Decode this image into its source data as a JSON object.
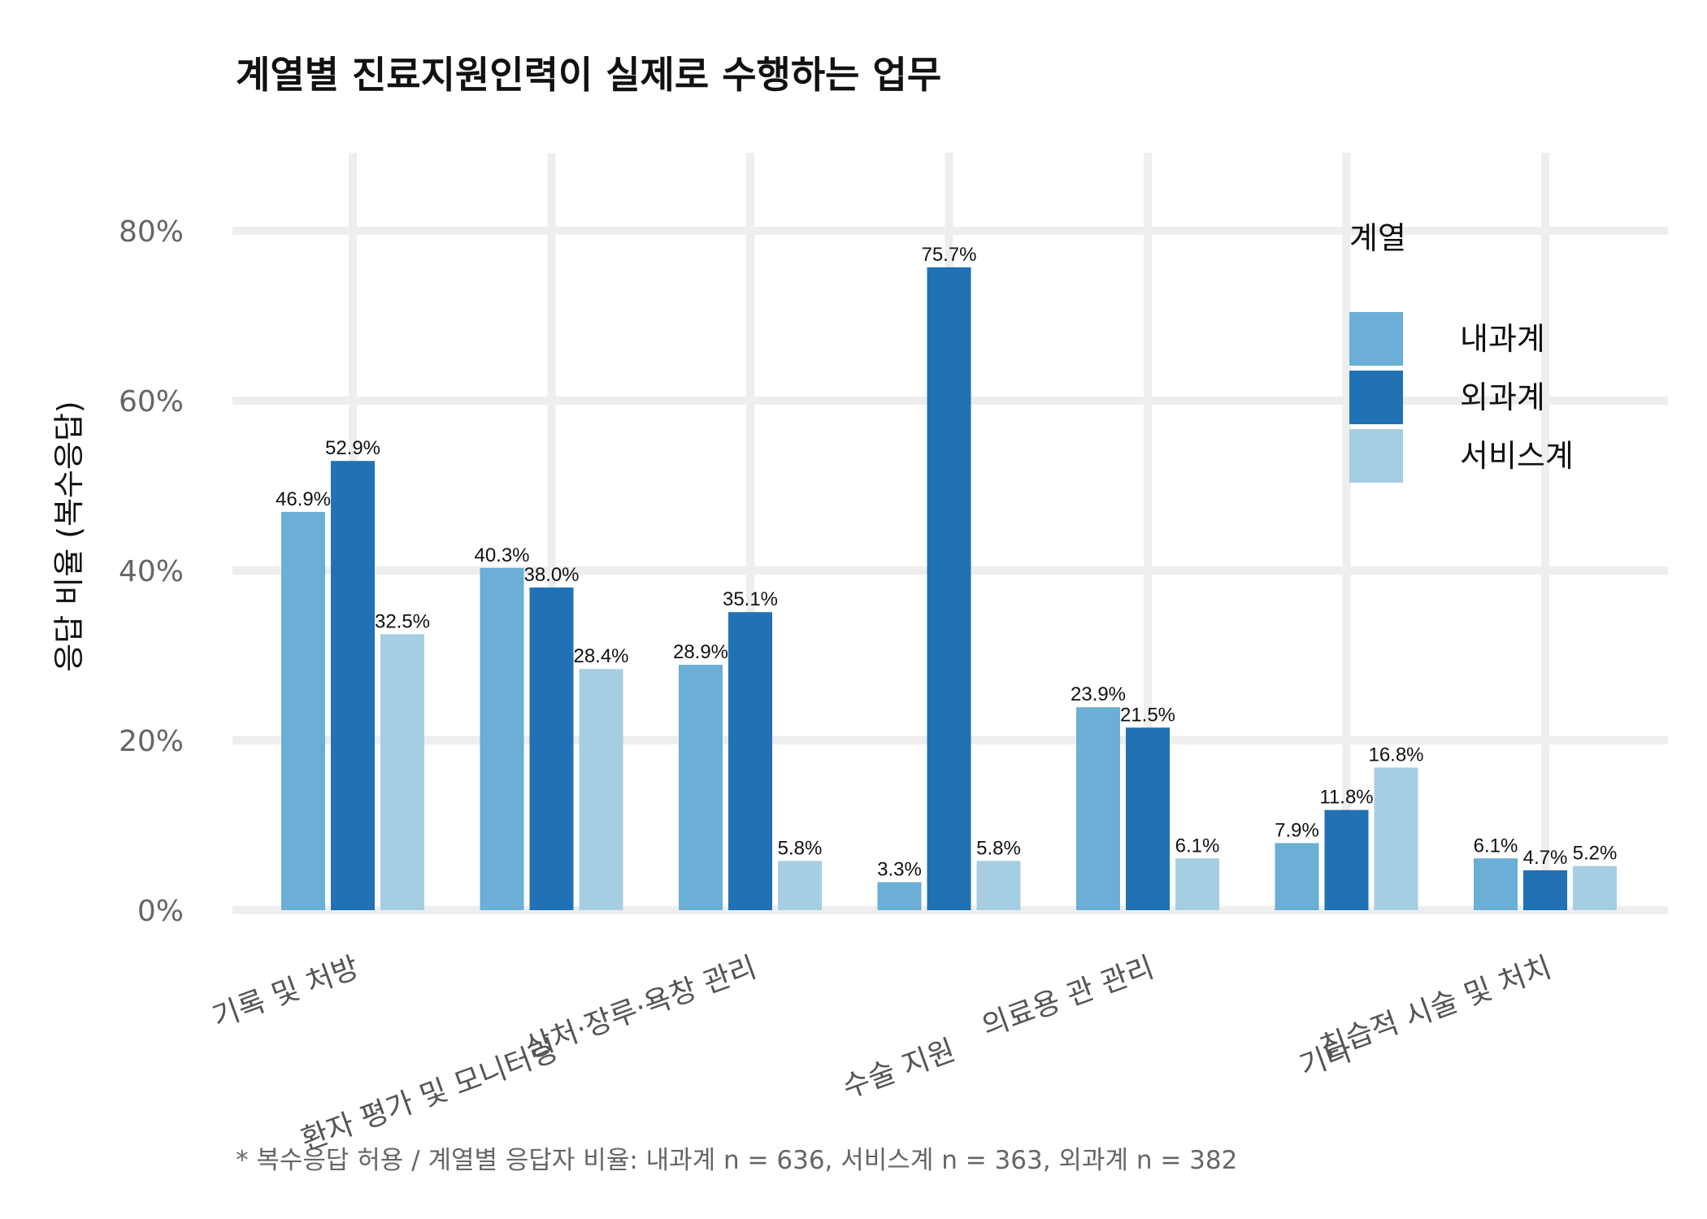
{
  "chart_data": {
    "type": "bar",
    "title": "계열별 진료지원인력이 실제로 수행하는 업무",
    "xlabel": "",
    "ylabel": "응답 비율 (복수응답)",
    "ylim": [
      0,
      88
    ],
    "yticks": [
      0,
      20,
      40,
      60,
      80
    ],
    "ytick_labels": [
      "0%",
      "20%",
      "40%",
      "60%",
      "80%"
    ],
    "grid": true,
    "legend_position": "right",
    "legend_title": "계열",
    "categories": [
      "기록 및 처방",
      "환자 평가 및 모니터링",
      "상처·장루·욕창 관리",
      "수술 지원",
      "의료용 관 관리",
      "기타",
      "침습적 시술 및 처치"
    ],
    "series": [
      {
        "name": "내과계",
        "color": "#6baed6",
        "values": [
          46.9,
          40.3,
          28.9,
          3.3,
          23.9,
          7.9,
          6.1
        ],
        "labels": [
          "46.9%",
          "40.3%",
          "28.9%",
          "3.3%",
          "23.9%",
          "7.9%",
          "6.1%"
        ]
      },
      {
        "name": "외과계",
        "color": "#2171b5",
        "values": [
          52.9,
          38.0,
          35.1,
          75.7,
          21.5,
          11.8,
          4.7
        ],
        "labels": [
          "52.9%",
          "38.0%",
          "35.1%",
          "75.7%",
          "21.5%",
          "11.8%",
          "4.7%"
        ]
      },
      {
        "name": "서비스계",
        "color": "#a6cee3",
        "values": [
          32.5,
          28.4,
          5.8,
          5.8,
          6.1,
          16.8,
          5.2
        ],
        "labels": [
          "32.5%",
          "28.4%",
          "5.8%",
          "5.8%",
          "6.1%",
          "16.8%",
          "5.2%"
        ]
      }
    ],
    "caption": "* 복수응답 허용 / 계열별 응답자 비율: 내과계 n = 636, 서비스계 n = 363, 외과계 n = 382"
  }
}
